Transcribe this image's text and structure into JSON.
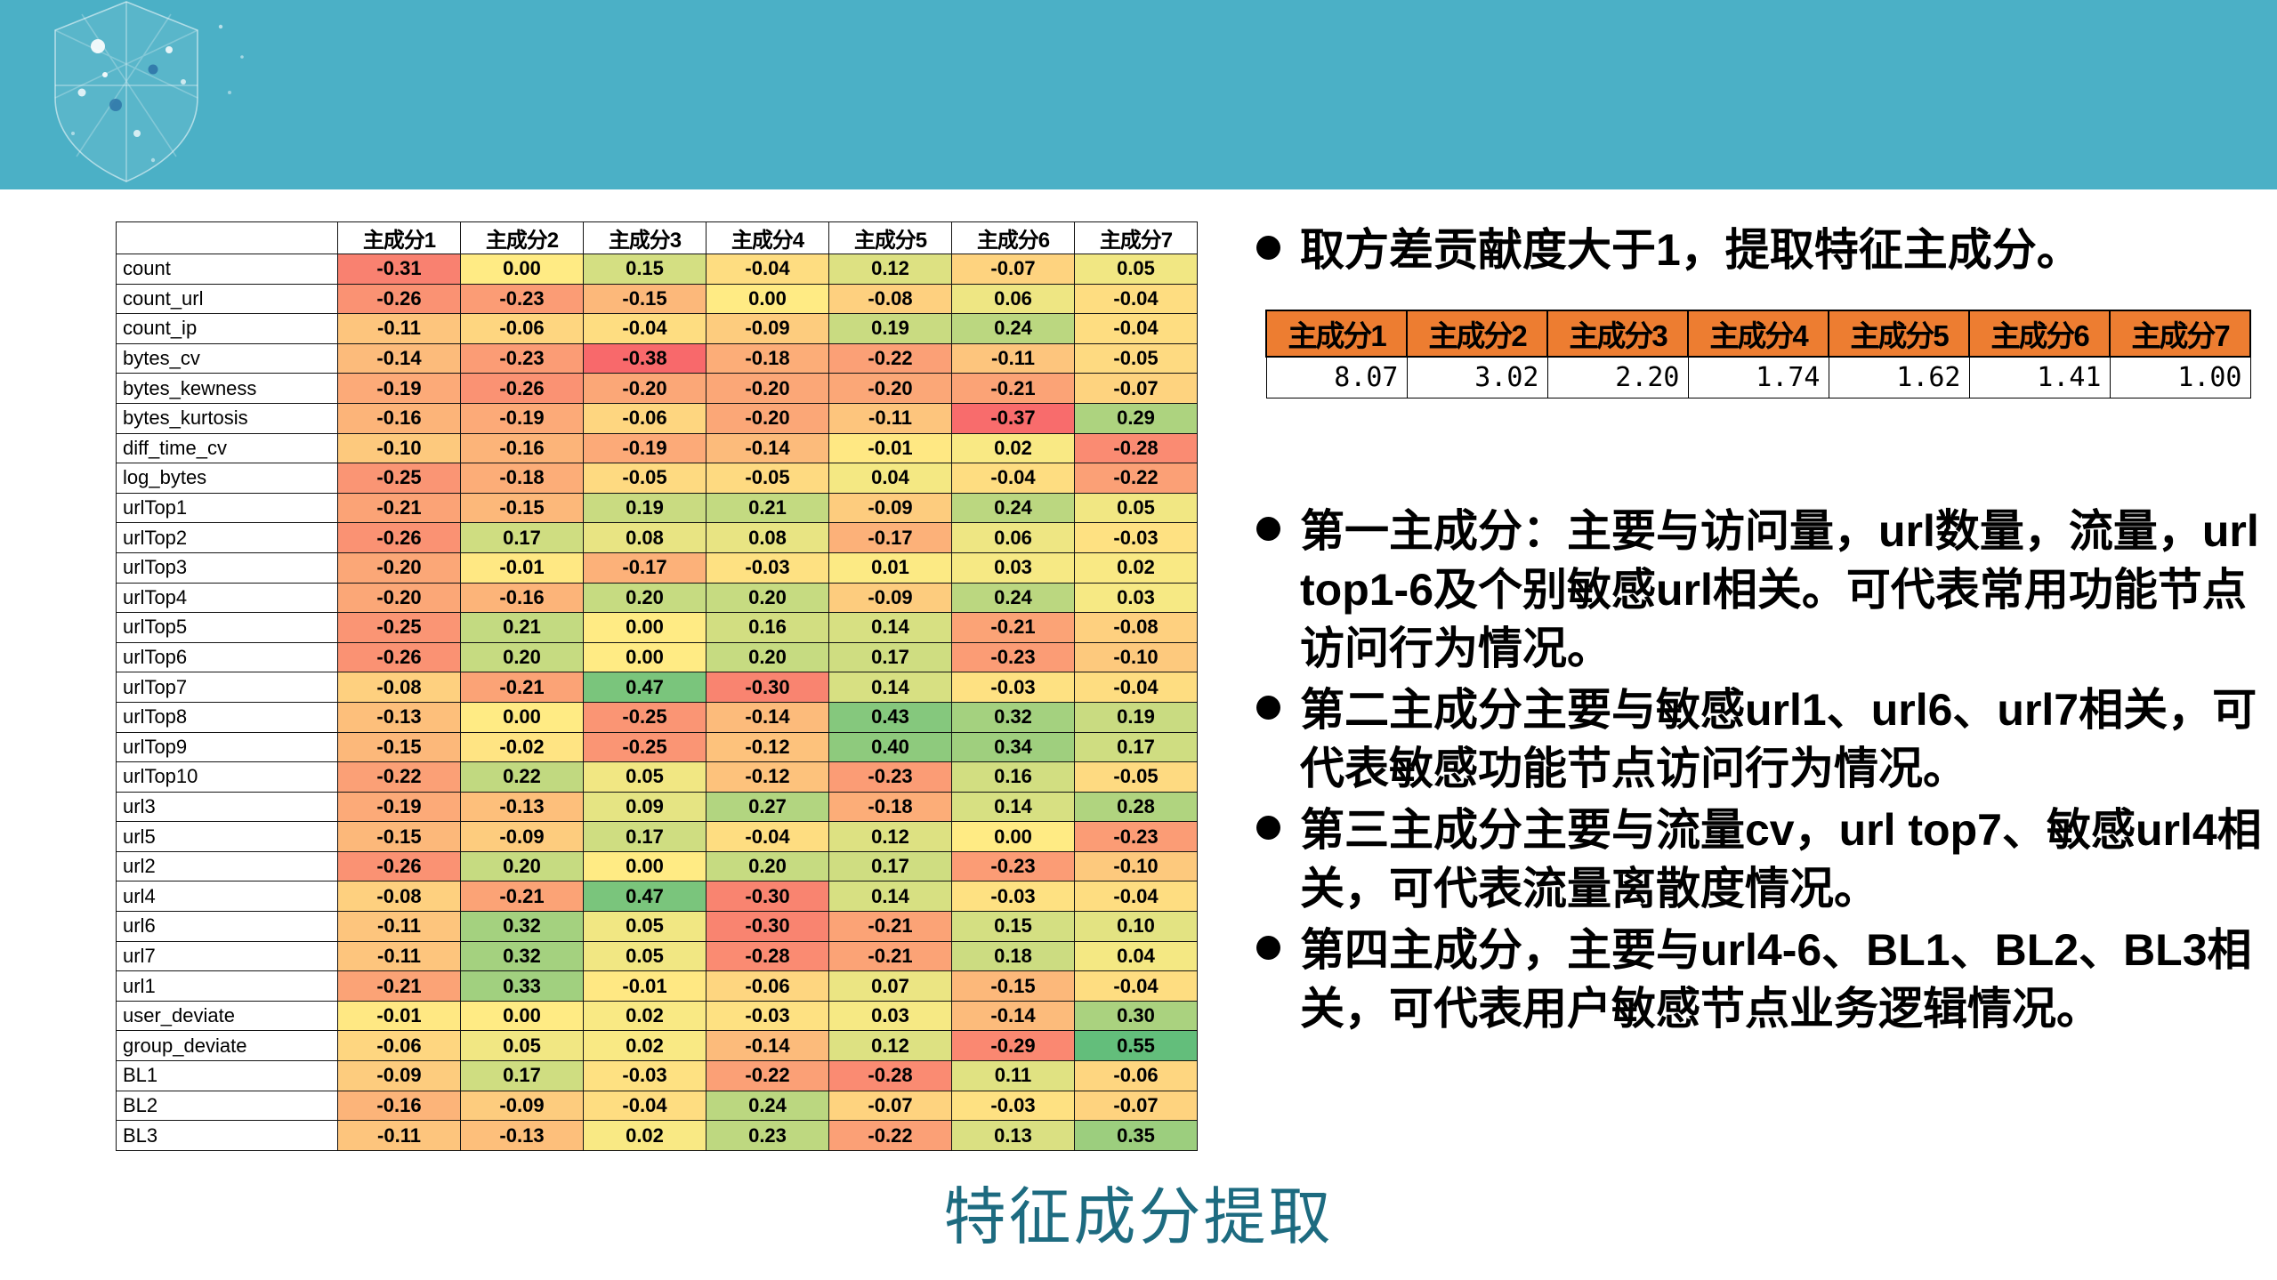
{
  "slide": {
    "band_color": "#4bb0c6",
    "title": {
      "text": "特征成分提取",
      "color": "#1d6b80"
    }
  },
  "chart_data": {
    "type": "heatmap",
    "title": "PCA component loadings heatmap",
    "columns": [
      "主成分1",
      "主成分2",
      "主成分3",
      "主成分4",
      "主成分5",
      "主成分6",
      "主成分7"
    ],
    "rows": [
      "count",
      "count_url",
      "count_ip",
      "bytes_cv",
      "bytes_kewness",
      "bytes_kurtosis",
      "diff_time_cv",
      "log_bytes",
      "urlTop1",
      "urlTop2",
      "urlTop3",
      "urlTop4",
      "urlTop5",
      "urlTop6",
      "urlTop7",
      "urlTop8",
      "urlTop9",
      "urlTop10",
      "url3",
      "url5",
      "url2",
      "url4",
      "url6",
      "url7",
      "url1",
      "user_deviate",
      "group_deviate",
      "BL1",
      "BL2",
      "BL3"
    ],
    "values": [
      [
        -0.31,
        0.0,
        0.15,
        -0.04,
        0.12,
        -0.07,
        0.05
      ],
      [
        -0.26,
        -0.23,
        -0.15,
        0.0,
        -0.08,
        0.06,
        -0.04
      ],
      [
        -0.11,
        -0.06,
        -0.04,
        -0.09,
        0.19,
        0.24,
        -0.04
      ],
      [
        -0.14,
        -0.23,
        -0.38,
        -0.18,
        -0.22,
        -0.11,
        -0.05
      ],
      [
        -0.19,
        -0.26,
        -0.2,
        -0.2,
        -0.2,
        -0.21,
        -0.07
      ],
      [
        -0.16,
        -0.19,
        -0.06,
        -0.2,
        -0.11,
        -0.37,
        0.29
      ],
      [
        -0.1,
        -0.16,
        -0.19,
        -0.14,
        -0.01,
        0.02,
        -0.28
      ],
      [
        -0.25,
        -0.18,
        -0.05,
        -0.05,
        0.04,
        -0.04,
        -0.22
      ],
      [
        -0.21,
        -0.15,
        0.19,
        0.21,
        -0.09,
        0.24,
        0.05
      ],
      [
        -0.26,
        0.17,
        0.08,
        0.08,
        -0.17,
        0.06,
        -0.03
      ],
      [
        -0.2,
        -0.01,
        -0.17,
        -0.03,
        0.01,
        0.03,
        0.02
      ],
      [
        -0.2,
        -0.16,
        0.2,
        0.2,
        -0.09,
        0.24,
        0.03
      ],
      [
        -0.25,
        0.21,
        0.0,
        0.16,
        0.14,
        -0.21,
        -0.08
      ],
      [
        -0.26,
        0.2,
        0.0,
        0.2,
        0.17,
        -0.23,
        -0.1
      ],
      [
        -0.08,
        -0.21,
        0.47,
        -0.3,
        0.14,
        -0.03,
        -0.04
      ],
      [
        -0.13,
        0.0,
        -0.25,
        -0.14,
        0.43,
        0.32,
        0.19
      ],
      [
        -0.15,
        -0.02,
        -0.25,
        -0.12,
        0.4,
        0.34,
        0.17
      ],
      [
        -0.22,
        0.22,
        0.05,
        -0.12,
        -0.23,
        0.16,
        -0.05
      ],
      [
        -0.19,
        -0.13,
        0.09,
        0.27,
        -0.18,
        0.14,
        0.28
      ],
      [
        -0.15,
        -0.09,
        0.17,
        -0.04,
        0.12,
        0.0,
        -0.23
      ],
      [
        -0.26,
        0.2,
        0.0,
        0.2,
        0.17,
        -0.23,
        -0.1
      ],
      [
        -0.08,
        -0.21,
        0.47,
        -0.3,
        0.14,
        -0.03,
        -0.04
      ],
      [
        -0.11,
        0.32,
        0.05,
        -0.3,
        -0.21,
        0.15,
        0.1
      ],
      [
        -0.11,
        0.32,
        0.05,
        -0.28,
        -0.21,
        0.18,
        0.04
      ],
      [
        -0.21,
        0.33,
        -0.01,
        -0.06,
        0.07,
        -0.15,
        -0.04
      ],
      [
        -0.01,
        0.0,
        0.02,
        -0.03,
        0.03,
        -0.14,
        0.3
      ],
      [
        -0.06,
        0.05,
        0.02,
        -0.14,
        0.12,
        -0.29,
        0.55
      ],
      [
        -0.09,
        0.17,
        -0.03,
        -0.22,
        -0.28,
        0.11,
        -0.06
      ],
      [
        -0.16,
        -0.09,
        -0.04,
        0.24,
        -0.07,
        -0.03,
        -0.07
      ],
      [
        -0.11,
        -0.13,
        0.02,
        0.23,
        -0.22,
        0.13,
        0.35
      ]
    ],
    "color_scale": {
      "min": "#F8696B",
      "mid": "#FFEB84",
      "max": "#63BE7B",
      "mid_value": 0
    },
    "legend_position": "none",
    "grid": true
  },
  "right_panel": {
    "intro_bullet": "取方差贡献度大于1，提取特征主成分。",
    "eigen_table": {
      "header_bg": "#ED7D31",
      "columns": [
        "主成分1",
        "主成分2",
        "主成分3",
        "主成分4",
        "主成分5",
        "主成分6",
        "主成分7"
      ],
      "values": [
        "8.07",
        "3.02",
        "2.20",
        "1.74",
        "1.62",
        "1.41",
        "1.00"
      ]
    },
    "bullets": [
      "第一主成分：主要与访问量，url数量，流量，url top1-6及个别敏感url相关。可代表常用功能节点访问行为情况。",
      "第二主成分主要与敏感url1、url6、url7相关，可代表敏感功能节点访问行为情况。",
      "第三主成分主要与流量cv，url top7、敏感url4相关，可代表流量离散度情况。",
      "第四主成分，主要与url4-6、BL1、BL2、BL3相关，可代表用户敏感节点业务逻辑情况。"
    ]
  }
}
